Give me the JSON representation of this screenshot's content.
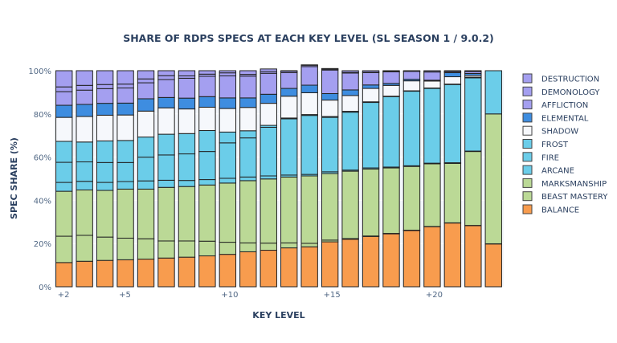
{
  "chart_data": {
    "type": "bar",
    "stacked": true,
    "normalized": true,
    "title": "SHARE OF RDPS SPECS AT EACH KEY LEVEL (SL SEASON 1 / 9.0.2)",
    "xlabel": "KEY LEVEL",
    "ylabel": "SPEC SHARE (%)",
    "ylim": [
      0,
      100
    ],
    "y_ticks": [
      "0%",
      "20%",
      "40%",
      "60%",
      "80%",
      "100%"
    ],
    "y_tick_values": [
      0,
      20,
      40,
      60,
      80,
      100
    ],
    "x_tick_labels": [
      {
        "level": 2,
        "label": "+2"
      },
      {
        "level": 5,
        "label": "+5"
      },
      {
        "level": 10,
        "label": "+10"
      },
      {
        "level": 15,
        "label": "+15"
      },
      {
        "level": 20,
        "label": "+20"
      }
    ],
    "grid": true,
    "legend_position": "right",
    "categories": [
      2,
      3,
      4,
      5,
      6,
      7,
      8,
      9,
      10,
      11,
      12,
      13,
      14,
      15,
      16,
      17,
      18,
      19,
      20,
      21,
      22,
      23
    ],
    "series": [
      {
        "name": "BALANCE",
        "color": "#f89c4e",
        "values": [
          11.2,
          11.8,
          12.2,
          12.5,
          12.8,
          13.3,
          13.7,
          14.3,
          15.0,
          16.2,
          16.9,
          18.0,
          18.5,
          20.8,
          22.0,
          23.3,
          24.5,
          26.0,
          27.8,
          29.5,
          28.3,
          19.8
        ]
      },
      {
        "name": "BEAST MASTERY",
        "color": "#bbd996",
        "values": [
          12.2,
          12.0,
          10.8,
          10.0,
          9.4,
          7.9,
          7.5,
          6.8,
          5.6,
          4.1,
          3.3,
          2.3,
          1.6,
          0.8,
          0.3,
          0.2,
          0.2,
          0.2,
          0.1,
          0.1,
          0.1,
          0.1
        ]
      },
      {
        "name": "MARKSMANSHIP",
        "color": "#bbd996",
        "values": [
          20.8,
          21.0,
          21.6,
          22.7,
          23.0,
          24.8,
          25.2,
          26.0,
          27.4,
          28.8,
          29.7,
          30.5,
          31.2,
          30.8,
          31.2,
          31.0,
          30.3,
          29.5,
          29.0,
          27.5,
          34.2,
          60.1
        ]
      },
      {
        "name": "ARCANE",
        "color": "#6bcde9",
        "values": [
          4.1,
          4.0,
          3.7,
          3.5,
          3.8,
          3.3,
          2.8,
          2.5,
          2.2,
          1.7,
          1.4,
          0.9,
          0.7,
          0.8,
          0.5,
          0.5,
          0.4,
          0.3,
          0.3,
          0.3,
          0.2,
          0.0
        ]
      },
      {
        "name": "FIRE",
        "color": "#6bcde9",
        "values": [
          9.3,
          9.0,
          9.2,
          8.8,
          11.0,
          11.7,
          12.3,
          13.0,
          16.4,
          18.1,
          22.5,
          26.0,
          27.3,
          25.2,
          26.8,
          30.3,
          32.6,
          34.5,
          34.6,
          36.2,
          33.9,
          20.0
        ]
      },
      {
        "name": "FROST",
        "color": "#6bcde9",
        "values": [
          9.7,
          9.2,
          10.0,
          10.2,
          9.3,
          9.6,
          9.4,
          9.7,
          5.0,
          3.3,
          0.9,
          0.4,
          0.4,
          0.4,
          0.4,
          0.3,
          0.2,
          0.2,
          0.2,
          0.2,
          0.3,
          0.0
        ]
      },
      {
        "name": "SHADOW",
        "color": "#f6f8fc",
        "values": [
          11.1,
          11.8,
          11.9,
          11.8,
          12.0,
          12.2,
          11.4,
          10.8,
          10.9,
          10.8,
          10.2,
          10.1,
          10.1,
          7.6,
          7.3,
          6.2,
          5.0,
          4.6,
          3.2,
          3.4,
          0.8,
          0.0
        ]
      },
      {
        "name": "ELEMENTAL",
        "color": "#3e8de0",
        "values": [
          5.6,
          5.6,
          5.5,
          5.5,
          5.7,
          4.8,
          5.0,
          4.9,
          4.9,
          4.4,
          4.2,
          3.6,
          3.5,
          3.0,
          2.6,
          1.6,
          0.9,
          0.7,
          0.4,
          1.9,
          0.9,
          0.0
        ]
      },
      {
        "name": "AFFLICTION",
        "color": "#a49ff0",
        "values": [
          6.3,
          6.6,
          6.8,
          7.0,
          7.4,
          8.3,
          9.2,
          9.4,
          10.2,
          10.1,
          9.7,
          7.3,
          8.6,
          10.9,
          7.8,
          5.7,
          5.4,
          3.7,
          3.8,
          0.5,
          0.9,
          0.0
        ]
      },
      {
        "name": "DEMONOLOGY",
        "color": "#a49ff0",
        "values": [
          2.2,
          2.2,
          1.9,
          1.8,
          1.8,
          1.8,
          1.1,
          1.0,
          1.4,
          0.8,
          0.8,
          0.7,
          0.6,
          0.4,
          0.3,
          0.2,
          0.2,
          0.1,
          0.1,
          0.1,
          0.1,
          0.0
        ]
      },
      {
        "name": "DESTRUCTION",
        "color": "#a49ff0",
        "values": [
          7.5,
          6.8,
          6.4,
          6.2,
          3.8,
          2.3,
          2.4,
          1.6,
          1.0,
          1.7,
          1.2,
          0.2,
          0.2,
          0.3,
          0.8,
          0.7,
          0.3,
          0.2,
          0.5,
          0.3,
          0.3,
          0.0
        ]
      }
    ]
  }
}
